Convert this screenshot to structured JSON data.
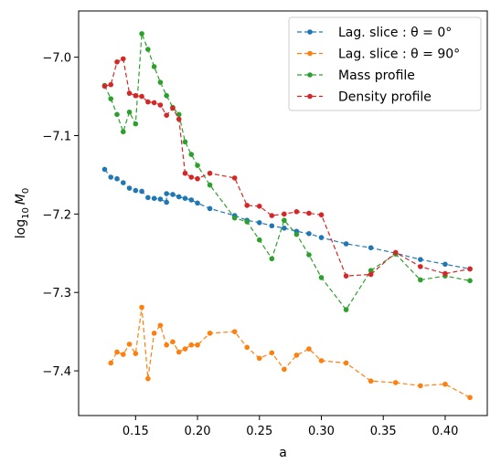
{
  "chart_data": {
    "type": "line",
    "xlabel": "a",
    "ylabel_base": "log",
    "ylabel_sub": "10",
    "ylabel_var": "M",
    "ylabel_var_sub": "0",
    "xlim": [
      0.104,
      0.434
    ],
    "ylim": [
      -7.457,
      -6.941
    ],
    "xticks": [
      0.15,
      0.2,
      0.25,
      0.3,
      0.35,
      0.4
    ],
    "xtick_labels": [
      "0.15",
      "0.20",
      "0.25",
      "0.30",
      "0.35",
      "0.40"
    ],
    "yticks": [
      -7.4,
      -7.3,
      -7.2,
      -7.1,
      -7.0
    ],
    "ytick_labels": [
      "−7.4",
      "−7.3",
      "−7.2",
      "−7.1",
      "−7.0"
    ],
    "legend_position": "top-right",
    "series": [
      {
        "name": "Lag. slice : θ = 0°",
        "color": "#1f77b4",
        "points": [
          [
            0.125,
            -7.143
          ],
          [
            0.13,
            -7.153
          ],
          [
            0.135,
            -7.155
          ],
          [
            0.14,
            -7.16
          ],
          [
            0.145,
            -7.167
          ],
          [
            0.15,
            -7.17
          ],
          [
            0.155,
            -7.171
          ],
          [
            0.16,
            -7.179
          ],
          [
            0.165,
            -7.18
          ],
          [
            0.17,
            -7.181
          ],
          [
            0.175,
            -7.185
          ],
          [
            0.175,
            -7.174
          ],
          [
            0.18,
            -7.175
          ],
          [
            0.185,
            -7.178
          ],
          [
            0.19,
            -7.18
          ],
          [
            0.195,
            -7.182
          ],
          [
            0.2,
            -7.186
          ],
          [
            0.21,
            -7.193
          ],
          [
            0.23,
            -7.202
          ],
          [
            0.24,
            -7.208
          ],
          [
            0.25,
            -7.211
          ],
          [
            0.26,
            -7.215
          ],
          [
            0.27,
            -7.218
          ],
          [
            0.28,
            -7.222
          ],
          [
            0.29,
            -7.225
          ],
          [
            0.3,
            -7.23
          ],
          [
            0.32,
            -7.238
          ],
          [
            0.34,
            -7.243
          ],
          [
            0.36,
            -7.25
          ],
          [
            0.38,
            -7.258
          ],
          [
            0.4,
            -7.264
          ],
          [
            0.42,
            -7.27
          ]
        ]
      },
      {
        "name": "Lag. slice : θ = 90°",
        "color": "#ff7f0e",
        "points": [
          [
            0.13,
            -7.39
          ],
          [
            0.135,
            -7.376
          ],
          [
            0.14,
            -7.379
          ],
          [
            0.145,
            -7.366
          ],
          [
            0.15,
            -7.378
          ],
          [
            0.155,
            -7.319
          ],
          [
            0.16,
            -7.41
          ],
          [
            0.165,
            -7.352
          ],
          [
            0.17,
            -7.342
          ],
          [
            0.175,
            -7.367
          ],
          [
            0.18,
            -7.363
          ],
          [
            0.185,
            -7.376
          ],
          [
            0.19,
            -7.372
          ],
          [
            0.195,
            -7.367
          ],
          [
            0.2,
            -7.367
          ],
          [
            0.21,
            -7.352
          ],
          [
            0.23,
            -7.35
          ],
          [
            0.24,
            -7.37
          ],
          [
            0.25,
            -7.384
          ],
          [
            0.26,
            -7.377
          ],
          [
            0.27,
            -7.398
          ],
          [
            0.28,
            -7.38
          ],
          [
            0.29,
            -7.372
          ],
          [
            0.3,
            -7.387
          ],
          [
            0.32,
            -7.39
          ],
          [
            0.34,
            -7.413
          ],
          [
            0.36,
            -7.415
          ],
          [
            0.38,
            -7.419
          ],
          [
            0.4,
            -7.417
          ],
          [
            0.42,
            -7.434
          ]
        ]
      },
      {
        "name": "Mass profile",
        "color": "#2ca02c",
        "points": [
          [
            0.125,
            -7.036
          ],
          [
            0.13,
            -7.053
          ],
          [
            0.135,
            -7.073
          ],
          [
            0.14,
            -7.095
          ],
          [
            0.145,
            -7.07
          ],
          [
            0.15,
            -7.085
          ],
          [
            0.155,
            -6.97
          ],
          [
            0.16,
            -6.99
          ],
          [
            0.165,
            -7.012
          ],
          [
            0.17,
            -7.032
          ],
          [
            0.175,
            -7.049
          ],
          [
            0.18,
            -7.064
          ],
          [
            0.185,
            -7.073
          ],
          [
            0.19,
            -7.108
          ],
          [
            0.195,
            -7.124
          ],
          [
            0.2,
            -7.138
          ],
          [
            0.21,
            -7.163
          ],
          [
            0.23,
            -7.205
          ],
          [
            0.24,
            -7.21
          ],
          [
            0.25,
            -7.233
          ],
          [
            0.26,
            -7.257
          ],
          [
            0.27,
            -7.208
          ],
          [
            0.28,
            -7.226
          ],
          [
            0.29,
            -7.252
          ],
          [
            0.3,
            -7.281
          ],
          [
            0.32,
            -7.322
          ],
          [
            0.34,
            -7.272
          ],
          [
            0.36,
            -7.251
          ],
          [
            0.38,
            -7.284
          ],
          [
            0.4,
            -7.279
          ],
          [
            0.42,
            -7.285
          ]
        ]
      },
      {
        "name": "Density profile",
        "color": "#d62728",
        "points": [
          [
            0.125,
            -7.037
          ],
          [
            0.13,
            -7.035
          ],
          [
            0.135,
            -7.006
          ],
          [
            0.14,
            -7.002
          ],
          [
            0.145,
            -7.046
          ],
          [
            0.15,
            -7.049
          ],
          [
            0.155,
            -7.05
          ],
          [
            0.16,
            -7.057
          ],
          [
            0.165,
            -7.058
          ],
          [
            0.17,
            -7.061
          ],
          [
            0.175,
            -7.074
          ],
          [
            0.18,
            -7.065
          ],
          [
            0.185,
            -7.079
          ],
          [
            0.19,
            -7.148
          ],
          [
            0.195,
            -7.153
          ],
          [
            0.2,
            -7.155
          ],
          [
            0.21,
            -7.148
          ],
          [
            0.23,
            -7.154
          ],
          [
            0.24,
            -7.189
          ],
          [
            0.25,
            -7.19
          ],
          [
            0.26,
            -7.202
          ],
          [
            0.27,
            -7.2
          ],
          [
            0.28,
            -7.197
          ],
          [
            0.29,
            -7.199
          ],
          [
            0.3,
            -7.201
          ],
          [
            0.32,
            -7.279
          ],
          [
            0.34,
            -7.277
          ],
          [
            0.36,
            -7.249
          ],
          [
            0.38,
            -7.267
          ],
          [
            0.4,
            -7.276
          ],
          [
            0.42,
            -7.27
          ]
        ]
      }
    ]
  }
}
